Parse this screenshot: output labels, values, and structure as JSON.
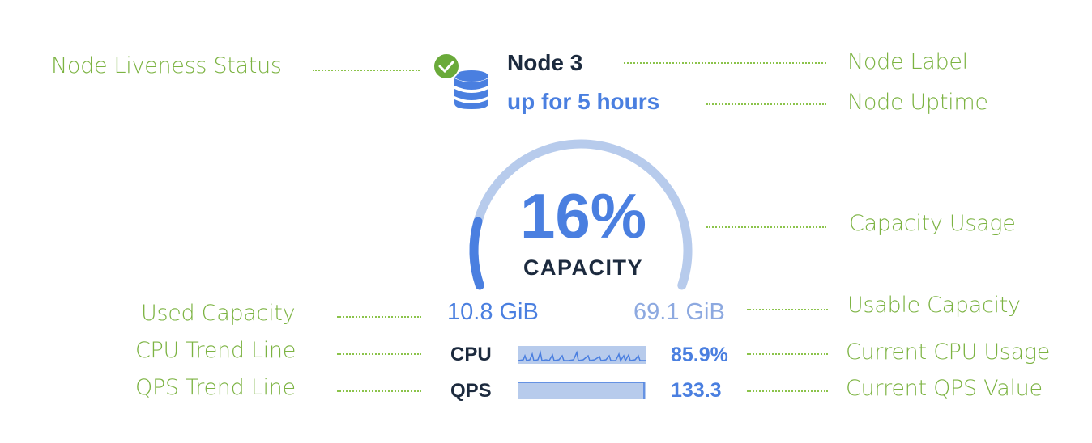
{
  "node": {
    "title": "Node 3",
    "uptime": "up for 5 hours",
    "liveness_icon": "check-circle-icon",
    "node_icon": "database-icon"
  },
  "capacity": {
    "percent": 16,
    "percent_label": "16%",
    "label": "CAPACITY",
    "used": "10.8 GiB",
    "usable": "69.1 GiB"
  },
  "metrics": {
    "cpu": {
      "label": "CPU",
      "value": "85.9%"
    },
    "qps": {
      "label": "QPS",
      "value": "133.3"
    }
  },
  "annotations": {
    "liveness": "Node Liveness Status",
    "label": "Node Label",
    "uptime": "Node Uptime",
    "capacity_usage": "Capacity Usage",
    "used_capacity": "Used Capacity",
    "usable_capacity": "Usable Capacity",
    "cpu_trend": "CPU Trend Line",
    "cpu_current": "Current CPU Usage",
    "qps_trend": "QPS Trend Line",
    "qps_current": "Current QPS Value"
  },
  "colors": {
    "accent": "#4a7fe0",
    "track": "#b7cbec",
    "annotation": "#7cb342",
    "ok": "#6aaa3a"
  }
}
